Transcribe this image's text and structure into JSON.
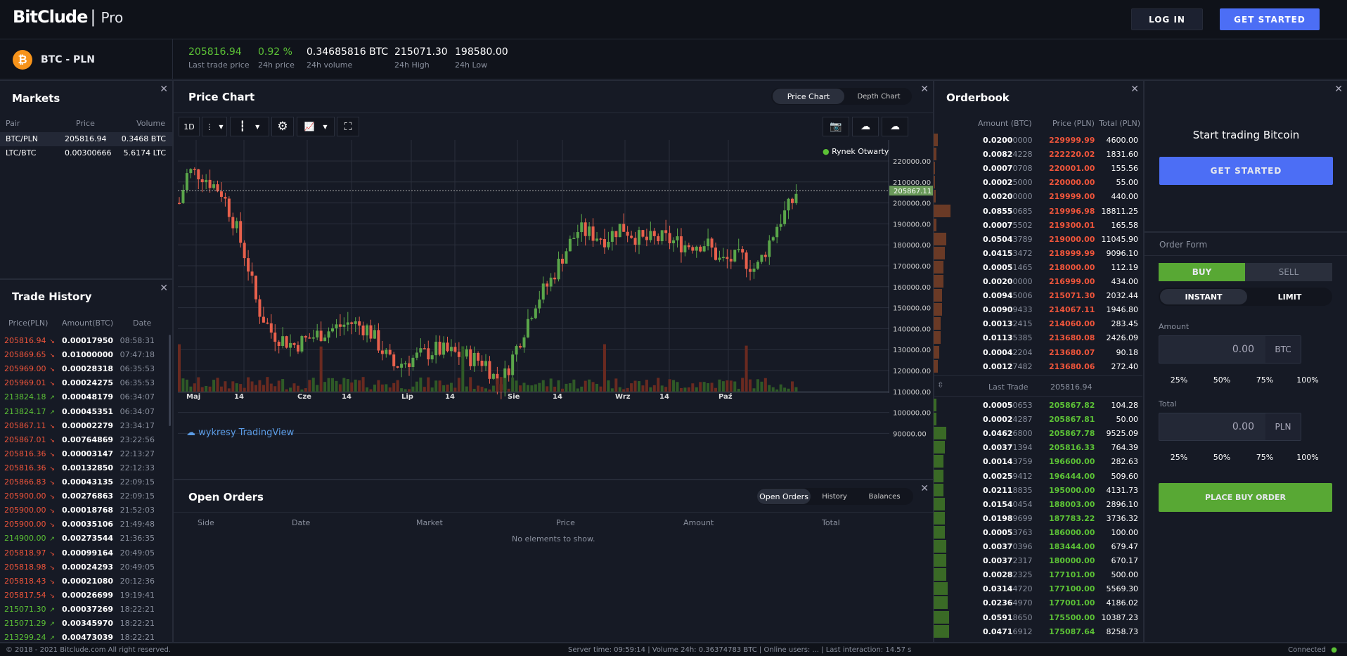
{
  "header": {
    "brand": "BitClude",
    "pro": "Pro",
    "login": "LOG IN",
    "get_started": "GET STARTED"
  },
  "ticker": {
    "pair": "BTC - PLN",
    "coin": "₿",
    "stats": [
      {
        "value": "205816.94",
        "label": "Last trade price",
        "color": "#5cc236"
      },
      {
        "value": "0.92 %",
        "label": "24h price",
        "color": "#5cc236"
      },
      {
        "value": "0.34685816 BTC",
        "label": "24h volume",
        "color": "#fff"
      },
      {
        "value": "215071.30",
        "label": "24h High",
        "color": "#fff"
      },
      {
        "value": "198580.00",
        "label": "24h Low",
        "color": "#fff"
      }
    ]
  },
  "markets": {
    "title": "Markets",
    "cols": [
      "Pair",
      "Price",
      "Volume"
    ],
    "rows": [
      [
        "BTC/PLN",
        "205816.94",
        "0.3468 BTC"
      ],
      [
        "LTC/BTC",
        "0.00300666",
        "5.6174 LTC"
      ]
    ]
  },
  "trade_history": {
    "title": "Trade History",
    "cols": [
      "Price(PLN)",
      "Amount(BTC)",
      "Date"
    ],
    "rows": [
      [
        "205816.94",
        "0.00017950",
        "08:58:31",
        "s"
      ],
      [
        "205869.65",
        "0.01000000",
        "07:47:18",
        "s"
      ],
      [
        "205969.00",
        "0.00028318",
        "06:35:53",
        "s"
      ],
      [
        "205969.01",
        "0.00024275",
        "06:35:53",
        "s"
      ],
      [
        "213824.18",
        "0.00048179",
        "06:34:07",
        "b"
      ],
      [
        "213824.17",
        "0.00045351",
        "06:34:07",
        "b"
      ],
      [
        "205867.11",
        "0.00002279",
        "23:34:17",
        "s"
      ],
      [
        "205867.01",
        "0.00764869",
        "23:22:56",
        "s"
      ],
      [
        "205816.36",
        "0.00003147",
        "22:13:27",
        "s"
      ],
      [
        "205816.36",
        "0.00132850",
        "22:12:33",
        "s"
      ],
      [
        "205866.83",
        "0.00043135",
        "22:09:15",
        "s"
      ],
      [
        "205900.00",
        "0.00276863",
        "22:09:15",
        "s"
      ],
      [
        "205900.00",
        "0.00018768",
        "21:52:03",
        "s"
      ],
      [
        "205900.00",
        "0.00035106",
        "21:49:48",
        "s"
      ],
      [
        "214900.00",
        "0.00273544",
        "21:36:35",
        "b"
      ],
      [
        "205818.97",
        "0.00099164",
        "20:49:05",
        "s"
      ],
      [
        "205818.98",
        "0.00024293",
        "20:49:05",
        "s"
      ],
      [
        "205818.43",
        "0.00021080",
        "20:12:36",
        "s"
      ],
      [
        "205817.54",
        "0.00026699",
        "19:19:41",
        "s"
      ],
      [
        "215071.30",
        "0.00037269",
        "18:22:21",
        "b"
      ],
      [
        "215071.29",
        "0.00345970",
        "18:22:21",
        "b"
      ],
      [
        "213299.24",
        "0.00473039",
        "18:22:21",
        "b"
      ]
    ]
  },
  "price_chart": {
    "title": "Price Chart",
    "tabs": [
      "Price Chart",
      "Depth Chart"
    ],
    "interval": "1D",
    "status": "Rynek Otwarty",
    "last": "205867.11",
    "watermark": "wykresy TradingView",
    "y_ticks": [
      "220000.00",
      "210000.00",
      "200000.00",
      "190000.00",
      "180000.00",
      "170000.00",
      "160000.00",
      "150000.00",
      "140000.00",
      "130000.00",
      "120000.00",
      "110000.00",
      "100000.00",
      "90000.00"
    ],
    "x_ticks": [
      "Maj",
      "14",
      "Cze",
      "14",
      "Lip",
      "14",
      "Sie",
      "14",
      "Wrz",
      "14",
      "Paź"
    ]
  },
  "open_orders": {
    "title": "Open Orders",
    "tabs": [
      "Open Orders",
      "History",
      "Balances"
    ],
    "cols": [
      "Side",
      "Date",
      "Market",
      "Price",
      "Amount",
      "Total"
    ],
    "empty": "No elements to show."
  },
  "orderbook": {
    "title": "Orderbook",
    "cols": [
      "Amount (BTC)",
      "Price (PLN)",
      "Total (PLN)"
    ],
    "last_label": "Last Trade",
    "last_value": "205816.94",
    "asks": [
      [
        "0.0200",
        "0000",
        "229999.99",
        "4600.00",
        6
      ],
      [
        "0.0082",
        "4228",
        "222220.02",
        "1831.60",
        4
      ],
      [
        "0.0007",
        "0708",
        "220001.00",
        "155.56",
        2
      ],
      [
        "0.0002",
        "5000",
        "220000.00",
        "55.00",
        2
      ],
      [
        "0.0020",
        "0000",
        "219999.00",
        "440.00",
        3
      ],
      [
        "0.0855",
        "0685",
        "219996.98",
        "18811.25",
        24
      ],
      [
        "0.0007",
        "5502",
        "219300.01",
        "165.58",
        4
      ],
      [
        "0.0504",
        "3789",
        "219000.00",
        "11045.90",
        18
      ],
      [
        "0.0415",
        "3472",
        "218999.99",
        "9096.10",
        16
      ],
      [
        "0.0005",
        "1465",
        "218000.00",
        "112.19",
        14
      ],
      [
        "0.0020",
        "0000",
        "216999.00",
        "434.00",
        14
      ],
      [
        "0.0094",
        "5006",
        "215071.30",
        "2032.44",
        12
      ],
      [
        "0.0090",
        "9433",
        "214067.11",
        "1946.80",
        12
      ],
      [
        "0.0013",
        "2415",
        "214060.00",
        "283.45",
        10
      ],
      [
        "0.0113",
        "5385",
        "213680.08",
        "2426.09",
        10
      ],
      [
        "0.0004",
        "2204",
        "213680.07",
        "90.18",
        8
      ],
      [
        "0.0012",
        "7482",
        "213680.06",
        "272.40",
        6
      ]
    ],
    "bids": [
      [
        "0.0005",
        "0653",
        "205867.82",
        "104.28",
        4
      ],
      [
        "0.0002",
        "4287",
        "205867.81",
        "50.00",
        4
      ],
      [
        "0.0462",
        "6800",
        "205867.78",
        "9525.09",
        18
      ],
      [
        "0.0037",
        "1394",
        "205816.33",
        "764.39",
        16
      ],
      [
        "0.0014",
        "3759",
        "196600.00",
        "282.63",
        14
      ],
      [
        "0.0025",
        "9412",
        "196444.00",
        "509.60",
        14
      ],
      [
        "0.0211",
        "8835",
        "195000.00",
        "4131.73",
        14
      ],
      [
        "0.0154",
        "0454",
        "188003.00",
        "2896.10",
        16
      ],
      [
        "0.0198",
        "9699",
        "187783.22",
        "3736.32",
        16
      ],
      [
        "0.0005",
        "3763",
        "186000.00",
        "100.00",
        16
      ],
      [
        "0.0037",
        "0396",
        "183444.00",
        "679.47",
        18
      ],
      [
        "0.0037",
        "2317",
        "180000.00",
        "670.17",
        18
      ],
      [
        "0.0028",
        "2325",
        "177101.00",
        "500.00",
        18
      ],
      [
        "0.0314",
        "4720",
        "177100.00",
        "5569.30",
        20
      ],
      [
        "0.0236",
        "4970",
        "177001.00",
        "4186.02",
        20
      ],
      [
        "0.0591",
        "8650",
        "175500.00",
        "10387.23",
        22
      ],
      [
        "0.0471",
        "6912",
        "175087.64",
        "8258.73",
        22
      ]
    ]
  },
  "cta": {
    "title": "Start trading Bitcoin",
    "button": "GET STARTED"
  },
  "order_form": {
    "title": "Order Form",
    "buy": "BUY",
    "sell": "SELL",
    "instant": "INSTANT",
    "limit": "LIMIT",
    "amount_label": "Amount",
    "amount_value": "0.00",
    "amount_cur": "BTC",
    "total_label": "Total",
    "total_value": "0.00",
    "total_cur": "PLN",
    "pcts": [
      "25%",
      "50%",
      "75%",
      "100%"
    ],
    "place": "PLACE BUY ORDER"
  },
  "footer": {
    "copy": "© 2018 - 2021 Bitclude.com All right reserved.",
    "server": "Server time: 09:59:14 | Volume 24h: 0.36374783 BTC | Online users: ... | Last interaction: 14.57 s",
    "conn": "Connected"
  }
}
